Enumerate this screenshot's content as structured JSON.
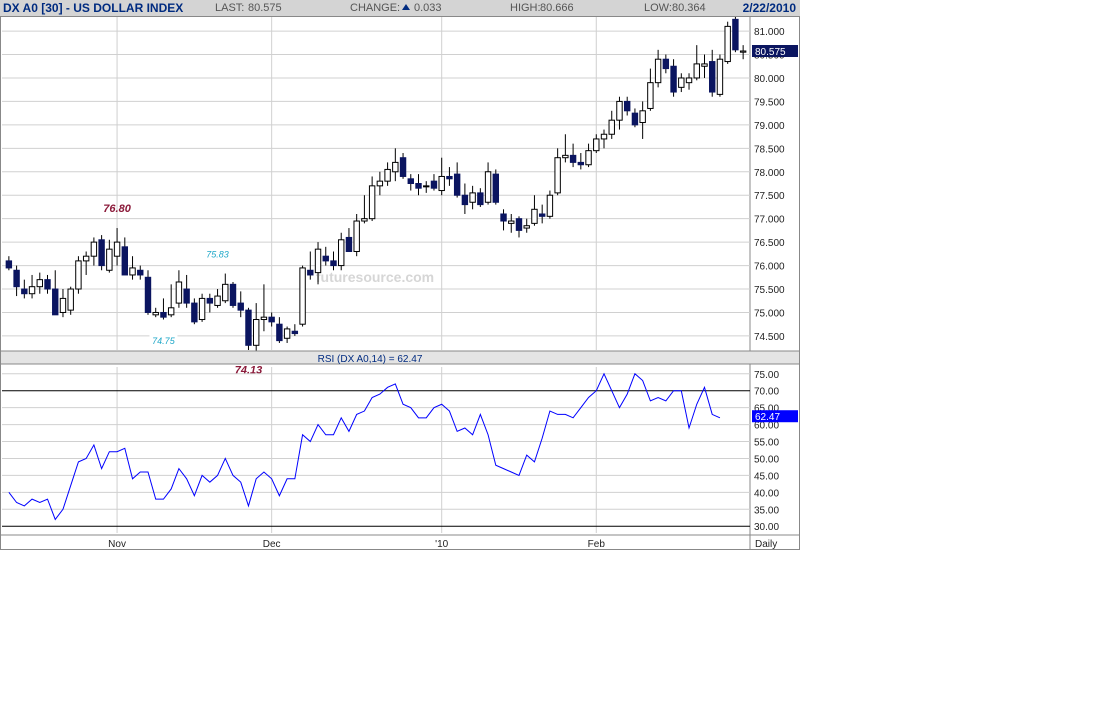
{
  "header": {
    "title": "DX A0 [30] - US DOLLAR INDEX",
    "last_label": "LAST:",
    "last_value": "80.575",
    "change_label": "CHANGE:",
    "change_value": "0.033",
    "high_label": "HIGH:",
    "high_value": "80.666",
    "low_label": "LOW:",
    "low_value": "80.364",
    "date": "2/22/2010"
  },
  "watermark": "futuresource.com",
  "rsi_label": "RSI (DX A0,14) = 62.47",
  "period_label": "Daily",
  "colors": {
    "header_bg": "#d4d4d4",
    "title": "#002b80",
    "down_candle": "#0b1560",
    "rsi_line": "#0000ff",
    "annot_red": "#8b1a3a",
    "annot_cyan": "#1ea7c8",
    "price_box": "#0b1560"
  },
  "chart_data": [
    {
      "type": "candlestick",
      "title": "DX A0 [30] - US DOLLAR INDEX",
      "ylim": [
        74.2,
        81.3
      ],
      "y_ticks": [
        74.5,
        75.0,
        75.5,
        76.0,
        76.5,
        77.0,
        77.5,
        78.0,
        78.5,
        79.0,
        79.5,
        80.0,
        80.5,
        81.0
      ],
      "y_tick_labels": [
        "74.500",
        "75.000",
        "75.500",
        "76.000",
        "76.500",
        "77.000",
        "77.500",
        "78.000",
        "78.500",
        "79.000",
        "79.500",
        "80.000",
        "80.500",
        "81.000"
      ],
      "x_labels": [
        {
          "label": "Nov",
          "index": 14
        },
        {
          "label": "Dec",
          "index": 34
        },
        {
          "label": "'10",
          "index": 56
        },
        {
          "label": "Feb",
          "index": 76
        }
      ],
      "last_price": "80.575",
      "annotations": [
        {
          "text": "76.80",
          "value": 76.8,
          "index": 14,
          "color": "red"
        },
        {
          "text": "75.83",
          "value": 75.83,
          "index": 27,
          "color": "cyan"
        },
        {
          "text": "74.75",
          "value": 74.75,
          "index": 20,
          "color": "cyan"
        },
        {
          "text": "74.13",
          "value": 74.13,
          "index": 31,
          "color": "red"
        }
      ],
      "candles": [
        {
          "o": 76.1,
          "h": 76.2,
          "l": 75.9,
          "c": 75.95
        },
        {
          "o": 75.9,
          "h": 76.0,
          "l": 75.35,
          "c": 75.55
        },
        {
          "o": 75.5,
          "h": 75.7,
          "l": 75.3,
          "c": 75.4
        },
        {
          "o": 75.4,
          "h": 75.8,
          "l": 75.3,
          "c": 75.55
        },
        {
          "o": 75.55,
          "h": 75.85,
          "l": 75.4,
          "c": 75.7
        },
        {
          "o": 75.7,
          "h": 75.8,
          "l": 75.4,
          "c": 75.5
        },
        {
          "o": 75.5,
          "h": 75.9,
          "l": 74.95,
          "c": 74.95
        },
        {
          "o": 75.0,
          "h": 75.5,
          "l": 74.9,
          "c": 75.3
        },
        {
          "o": 75.05,
          "h": 75.55,
          "l": 74.95,
          "c": 75.5
        },
        {
          "o": 75.5,
          "h": 76.2,
          "l": 75.4,
          "c": 76.1
        },
        {
          "o": 76.1,
          "h": 76.3,
          "l": 75.8,
          "c": 76.2
        },
        {
          "o": 76.2,
          "h": 76.6,
          "l": 76.0,
          "c": 76.5
        },
        {
          "o": 76.55,
          "h": 76.65,
          "l": 75.9,
          "c": 76.0
        },
        {
          "o": 75.9,
          "h": 76.55,
          "l": 75.85,
          "c": 76.35
        },
        {
          "o": 76.2,
          "h": 76.8,
          "l": 76.0,
          "c": 76.5
        },
        {
          "o": 76.4,
          "h": 76.6,
          "l": 75.8,
          "c": 75.8
        },
        {
          "o": 75.8,
          "h": 76.2,
          "l": 75.7,
          "c": 75.95
        },
        {
          "o": 75.9,
          "h": 76.0,
          "l": 75.7,
          "c": 75.8
        },
        {
          "o": 75.75,
          "h": 75.9,
          "l": 74.95,
          "c": 75.0
        },
        {
          "o": 74.95,
          "h": 75.1,
          "l": 74.9,
          "c": 75.0
        },
        {
          "o": 75.0,
          "h": 75.3,
          "l": 74.85,
          "c": 74.9
        },
        {
          "o": 74.95,
          "h": 75.6,
          "l": 74.9,
          "c": 75.1
        },
        {
          "o": 75.2,
          "h": 75.9,
          "l": 75.1,
          "c": 75.65
        },
        {
          "o": 75.5,
          "h": 75.8,
          "l": 75.1,
          "c": 75.2
        },
        {
          "o": 75.2,
          "h": 75.3,
          "l": 74.75,
          "c": 74.8
        },
        {
          "o": 74.85,
          "h": 75.4,
          "l": 74.8,
          "c": 75.3
        },
        {
          "o": 75.3,
          "h": 75.4,
          "l": 75.0,
          "c": 75.2
        },
        {
          "o": 75.15,
          "h": 75.5,
          "l": 75.1,
          "c": 75.35
        },
        {
          "o": 75.25,
          "h": 75.83,
          "l": 75.2,
          "c": 75.6
        },
        {
          "o": 75.6,
          "h": 75.65,
          "l": 75.1,
          "c": 75.15
        },
        {
          "o": 75.2,
          "h": 75.45,
          "l": 74.9,
          "c": 75.05
        },
        {
          "o": 75.05,
          "h": 75.1,
          "l": 74.2,
          "c": 74.3
        },
        {
          "o": 74.3,
          "h": 75.2,
          "l": 74.13,
          "c": 74.85
        },
        {
          "o": 74.85,
          "h": 75.6,
          "l": 74.6,
          "c": 74.9
        },
        {
          "o": 74.9,
          "h": 75.0,
          "l": 74.7,
          "c": 74.8
        },
        {
          "o": 74.75,
          "h": 74.9,
          "l": 74.35,
          "c": 74.4
        },
        {
          "o": 74.45,
          "h": 74.7,
          "l": 74.35,
          "c": 74.65
        },
        {
          "o": 74.6,
          "h": 74.75,
          "l": 74.5,
          "c": 74.55
        },
        {
          "o": 74.75,
          "h": 76.0,
          "l": 74.7,
          "c": 75.95
        },
        {
          "o": 75.9,
          "h": 76.3,
          "l": 75.7,
          "c": 75.8
        },
        {
          "o": 75.85,
          "h": 76.5,
          "l": 75.6,
          "c": 76.35
        },
        {
          "o": 76.2,
          "h": 76.4,
          "l": 76.0,
          "c": 76.1
        },
        {
          "o": 76.1,
          "h": 76.3,
          "l": 75.9,
          "c": 76.0
        },
        {
          "o": 76.0,
          "h": 76.7,
          "l": 75.9,
          "c": 76.55
        },
        {
          "o": 76.6,
          "h": 76.8,
          "l": 76.3,
          "c": 76.3
        },
        {
          "o": 76.3,
          "h": 77.1,
          "l": 76.2,
          "c": 76.95
        },
        {
          "o": 76.95,
          "h": 77.5,
          "l": 76.9,
          "c": 77.0
        },
        {
          "o": 77.0,
          "h": 77.9,
          "l": 76.95,
          "c": 77.7
        },
        {
          "o": 77.7,
          "h": 78.0,
          "l": 77.5,
          "c": 77.8
        },
        {
          "o": 77.8,
          "h": 78.2,
          "l": 77.7,
          "c": 78.05
        },
        {
          "o": 78.0,
          "h": 78.5,
          "l": 77.8,
          "c": 78.2
        },
        {
          "o": 78.3,
          "h": 78.4,
          "l": 77.85,
          "c": 77.9
        },
        {
          "o": 77.85,
          "h": 77.95,
          "l": 77.6,
          "c": 77.75
        },
        {
          "o": 77.75,
          "h": 77.95,
          "l": 77.5,
          "c": 77.65
        },
        {
          "o": 77.7,
          "h": 77.8,
          "l": 77.55,
          "c": 77.7
        },
        {
          "o": 77.8,
          "h": 77.95,
          "l": 77.6,
          "c": 77.65
        },
        {
          "o": 77.6,
          "h": 78.3,
          "l": 77.5,
          "c": 77.9
        },
        {
          "o": 77.9,
          "h": 78.1,
          "l": 77.7,
          "c": 77.85
        },
        {
          "o": 77.95,
          "h": 78.2,
          "l": 77.45,
          "c": 77.5
        },
        {
          "o": 77.5,
          "h": 77.75,
          "l": 77.1,
          "c": 77.3
        },
        {
          "o": 77.35,
          "h": 77.7,
          "l": 77.2,
          "c": 77.55
        },
        {
          "o": 77.55,
          "h": 77.65,
          "l": 77.25,
          "c": 77.3
        },
        {
          "o": 77.35,
          "h": 78.2,
          "l": 77.3,
          "c": 78.0
        },
        {
          "o": 77.95,
          "h": 78.05,
          "l": 77.3,
          "c": 77.35
        },
        {
          "o": 77.1,
          "h": 77.2,
          "l": 76.75,
          "c": 76.95
        },
        {
          "o": 76.9,
          "h": 77.1,
          "l": 76.7,
          "c": 76.95
        },
        {
          "o": 77.0,
          "h": 77.05,
          "l": 76.6,
          "c": 76.75
        },
        {
          "o": 76.8,
          "h": 77.0,
          "l": 76.7,
          "c": 76.85
        },
        {
          "o": 76.9,
          "h": 77.5,
          "l": 76.85,
          "c": 77.2
        },
        {
          "o": 77.1,
          "h": 77.3,
          "l": 76.9,
          "c": 77.05
        },
        {
          "o": 77.05,
          "h": 77.6,
          "l": 77.0,
          "c": 77.5
        },
        {
          "o": 77.55,
          "h": 78.5,
          "l": 77.5,
          "c": 78.3
        },
        {
          "o": 78.3,
          "h": 78.8,
          "l": 78.2,
          "c": 78.35
        },
        {
          "o": 78.35,
          "h": 78.6,
          "l": 78.1,
          "c": 78.2
        },
        {
          "o": 78.2,
          "h": 78.4,
          "l": 78.05,
          "c": 78.15
        },
        {
          "o": 78.15,
          "h": 78.6,
          "l": 78.1,
          "c": 78.45
        },
        {
          "o": 78.45,
          "h": 78.8,
          "l": 78.4,
          "c": 78.7
        },
        {
          "o": 78.7,
          "h": 78.9,
          "l": 78.5,
          "c": 78.8
        },
        {
          "o": 78.8,
          "h": 79.3,
          "l": 78.7,
          "c": 79.1
        },
        {
          "o": 79.1,
          "h": 79.6,
          "l": 78.9,
          "c": 79.5
        },
        {
          "o": 79.5,
          "h": 79.6,
          "l": 79.2,
          "c": 79.3
        },
        {
          "o": 79.25,
          "h": 79.35,
          "l": 78.95,
          "c": 79.0
        },
        {
          "o": 79.05,
          "h": 79.5,
          "l": 78.7,
          "c": 79.3
        },
        {
          "o": 79.35,
          "h": 80.2,
          "l": 79.3,
          "c": 79.9
        },
        {
          "o": 79.9,
          "h": 80.6,
          "l": 79.8,
          "c": 80.4
        },
        {
          "o": 80.4,
          "h": 80.5,
          "l": 80.1,
          "c": 80.2
        },
        {
          "o": 80.25,
          "h": 80.4,
          "l": 79.6,
          "c": 79.7
        },
        {
          "o": 79.8,
          "h": 80.1,
          "l": 79.7,
          "c": 80.0
        },
        {
          "o": 79.9,
          "h": 80.1,
          "l": 79.75,
          "c": 80.0
        },
        {
          "o": 80.0,
          "h": 80.7,
          "l": 79.95,
          "c": 80.3
        },
        {
          "o": 80.25,
          "h": 80.5,
          "l": 80.0,
          "c": 80.3
        },
        {
          "o": 80.35,
          "h": 80.6,
          "l": 79.6,
          "c": 79.7
        },
        {
          "o": 79.65,
          "h": 80.5,
          "l": 79.6,
          "c": 80.4
        },
        {
          "o": 80.35,
          "h": 81.2,
          "l": 80.3,
          "c": 81.1
        },
        {
          "o": 81.25,
          "h": 81.3,
          "l": 80.55,
          "c": 80.6
        },
        {
          "o": 80.55,
          "h": 80.7,
          "l": 80.4,
          "c": 80.575
        }
      ]
    },
    {
      "type": "line",
      "title": "RSI (DX A0,14) = 62.47",
      "ylim": [
        28,
        77
      ],
      "y_ticks": [
        30,
        35,
        40,
        45,
        50,
        55,
        60,
        65,
        70,
        75
      ],
      "y_tick_labels": [
        "30.00",
        "35.00",
        "40.00",
        "45.00",
        "50.00",
        "55.00",
        "60.00",
        "65.00",
        "70.00",
        "75.00"
      ],
      "reference_lines": [
        30,
        70
      ],
      "last_value": "62.47",
      "series": [
        {
          "values": [
            40,
            37,
            36,
            38,
            37,
            38,
            32,
            35,
            42,
            49,
            50,
            54,
            47,
            52,
            52,
            53,
            44,
            46,
            46,
            38,
            38,
            41,
            47,
            44,
            39,
            45,
            43,
            45,
            50,
            45,
            43,
            36,
            44,
            46,
            44,
            39,
            44,
            44,
            57,
            55,
            60,
            57,
            57,
            62,
            58,
            63,
            64,
            68,
            69,
            71,
            72,
            66,
            65,
            62,
            62,
            65,
            66,
            64,
            58,
            59,
            57,
            63,
            57,
            48,
            47,
            46,
            45,
            51,
            49,
            56,
            64,
            63,
            63,
            62,
            65,
            68,
            70,
            75,
            70,
            65,
            69,
            75,
            73,
            67,
            68,
            67,
            70,
            70,
            59,
            66,
            71,
            63,
            62
          ]
        }
      ]
    }
  ]
}
